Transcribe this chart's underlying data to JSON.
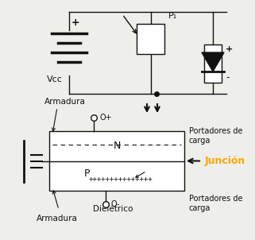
{
  "bg_color": "#eeeeea",
  "line_color": "#111111",
  "vcc_label": "Vcc",
  "junction_label": "Junción",
  "junction_color": "#FFA500",
  "N_label": "N",
  "P_label": "P",
  "plus_row": "+++++++++++++++",
  "armadura_label": "Armadura",
  "portadores_label": "Portadores de\ncarga",
  "dielectrico_label": "Dielétrico",
  "P1_label": "P₁",
  "figsize": [
    3.21,
    3.02
  ],
  "dpi": 100
}
